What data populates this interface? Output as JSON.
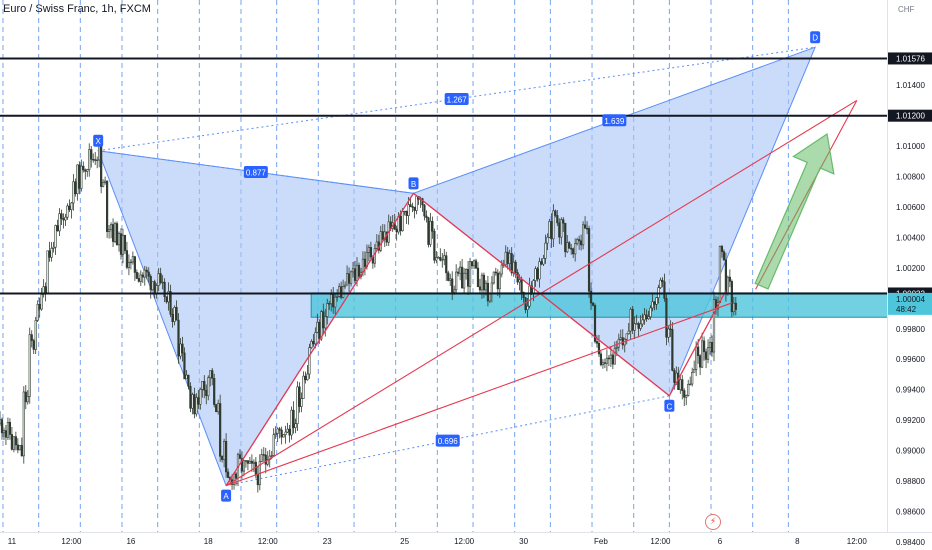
{
  "header": {
    "title": "Euro / Swiss Franc, 1h, FXCM"
  },
  "chart_data": {
    "type": "candlestick",
    "symbol": "Euro / Swiss Franc",
    "timeframe": "1h",
    "source": "FXCM",
    "currency_label": "CHF",
    "ylim": [
      0.9836,
      1.0196
    ],
    "y_ticks": [
      "1.01400",
      "1.01000",
      "1.00800",
      "1.00600",
      "1.00400",
      "1.00200",
      "0.99800",
      "0.99600",
      "0.99400",
      "0.99200",
      "0.99000",
      "0.98800",
      "0.98600",
      "0.98400"
    ],
    "x_ticks": [
      {
        "label": "11",
        "i": 2
      },
      {
        "label": "12:00",
        "i": 12
      },
      {
        "label": "16",
        "i": 22
      },
      {
        "label": "18",
        "i": 35
      },
      {
        "label": "12:00",
        "i": 45
      },
      {
        "label": "23",
        "i": 55
      },
      {
        "label": "25",
        "i": 68
      },
      {
        "label": "12:00",
        "i": 78
      },
      {
        "label": "30",
        "i": 88
      },
      {
        "label": "Feb",
        "i": 101
      },
      {
        "label": "12:00",
        "i": 111
      },
      {
        "label": "6",
        "i": 121
      },
      {
        "label": "8",
        "i": 134
      },
      {
        "label": "12:00",
        "i": 144
      }
    ],
    "session_lines_i": [
      0.5,
      6.5,
      13.5,
      20.5,
      26.5,
      33.5,
      40.5,
      46.5,
      53.5,
      59.5,
      66.5,
      73.5,
      79.5,
      86.5,
      92.5,
      99.5,
      106.5,
      112.5,
      119.5,
      126.5,
      132.5
    ],
    "price_anchors": [
      [
        0,
        0.9918
      ],
      [
        3,
        0.9898
      ],
      [
        5,
        0.997
      ],
      [
        8,
        1.003
      ],
      [
        11,
        1.006
      ],
      [
        14,
        1.009
      ],
      [
        16,
        1.0096
      ],
      [
        18,
        1.005
      ],
      [
        22,
        1.002
      ],
      [
        26,
        1.001
      ],
      [
        29,
        0.999
      ],
      [
        32,
        0.993
      ],
      [
        35,
        0.995
      ],
      [
        37,
        0.99
      ],
      [
        38,
        0.9879
      ],
      [
        40,
        0.989
      ],
      [
        43,
        0.9885
      ],
      [
        46,
        0.991
      ],
      [
        49,
        0.992
      ],
      [
        52,
        0.997
      ],
      [
        55,
        0.9995
      ],
      [
        58,
        1.001
      ],
      [
        61,
        1.0025
      ],
      [
        64,
        1.004
      ],
      [
        67,
        1.005
      ],
      [
        70,
        1.007
      ],
      [
        73,
        1.003
      ],
      [
        76,
        1.001
      ],
      [
        79,
        1.0018
      ],
      [
        82,
        1.0003
      ],
      [
        85,
        1.0025
      ],
      [
        88,
        1.0
      ],
      [
        91,
        1.003
      ],
      [
        93,
        1.0056
      ],
      [
        96,
        1.0028
      ],
      [
        98,
        1.005
      ],
      [
        99,
        1.0
      ],
      [
        100,
        0.9965
      ],
      [
        103,
        0.9962
      ],
      [
        106,
        0.9985
      ],
      [
        109,
        0.9994
      ],
      [
        111,
        1.0005
      ],
      [
        113,
        0.995
      ],
      [
        115,
        0.9938
      ],
      [
        117,
        0.9962
      ],
      [
        119,
        0.997
      ],
      [
        120,
        0.9998
      ],
      [
        121,
        1.003
      ],
      [
        122,
        1.0008
      ],
      [
        123,
        0.9998
      ]
    ],
    "levels": [
      {
        "price": 1.01576,
        "label": "1.01576",
        "style": "bold"
      },
      {
        "price": 1.012,
        "label": "1.01200",
        "style": "bold"
      },
      {
        "price": 1.00032,
        "label": "1.00032",
        "style": "bold"
      }
    ],
    "zone": {
      "from_i": 52.3,
      "to_i": 150,
      "top": 1.00036,
      "bottom": 0.99876
    },
    "current_price": {
      "label": "1.00004",
      "countdown": "48:42"
    },
    "harmonic": {
      "points": [
        {
          "label": "X",
          "i": 16.5,
          "price": 1.0097
        },
        {
          "label": "A",
          "i": 38,
          "price": 0.9877
        },
        {
          "label": "B",
          "i": 69.5,
          "price": 1.0069
        },
        {
          "label": "C",
          "i": 112.5,
          "price": 0.9936
        },
        {
          "label": "D",
          "i": 137,
          "price": 1.0165
        }
      ],
      "ratios": [
        {
          "label": "0.877",
          "at": "XB"
        },
        {
          "label": "1.267",
          "at": "XD"
        },
        {
          "label": "1.639",
          "at": "BD"
        },
        {
          "label": "0.696",
          "at": "AC"
        }
      ]
    },
    "channel": {
      "lower": [
        {
          "i": 38,
          "p": 0.9877
        },
        {
          "i": 123,
          "p": 0.9997
        }
      ],
      "upper": [
        {
          "i": 38,
          "p": 0.9877
        },
        {
          "i": 144,
          "p": 1.013
        }
      ],
      "right_side": [
        {
          "i": 127,
          "p": 1.0006
        },
        {
          "i": 144,
          "p": 1.013
        }
      ]
    },
    "zigzag": [
      {
        "i": 38,
        "p": 0.9877
      },
      {
        "i": 69.5,
        "p": 1.0069
      },
      {
        "i": 112.5,
        "p": 0.9936
      },
      {
        "i": 122,
        "p": 1.0005
      }
    ],
    "arrow": {
      "from_i": 128,
      "from_p": 1.0008,
      "to_i": 139,
      "to_p": 1.0108,
      "color": "#66bb6a"
    },
    "colors": {
      "candle": "#2e3a30",
      "pattern_fill": "#a9c3f7",
      "pattern_edge": "#5b8ff9",
      "red_line": "#e53950",
      "zone": "#4dc6dc",
      "label_bg": "#2962ff"
    }
  }
}
